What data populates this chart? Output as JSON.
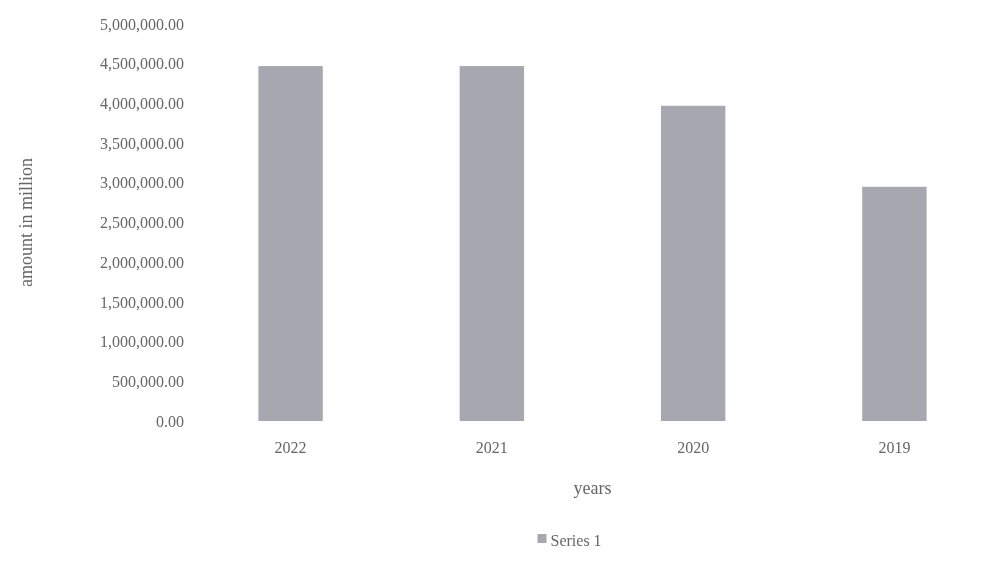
{
  "chart_data": {
    "type": "bar",
    "xlabel": "years",
    "ylabel": "amount in million",
    "categories": [
      "2022",
      "2021",
      "2020",
      "2019"
    ],
    "series": [
      {
        "name": "Series 1",
        "color": "#a7a7af",
        "values": [
          4470000,
          4470000,
          3970000,
          2950000
        ]
      }
    ],
    "ylim": [
      0,
      5000000
    ],
    "yticks": [
      {
        "value": 0,
        "label": "0.00"
      },
      {
        "value": 500000,
        "label": "500,000.00"
      },
      {
        "value": 1000000,
        "label": "1,000,000.00"
      },
      {
        "value": 1500000,
        "label": "1,500,000.00"
      },
      {
        "value": 2000000,
        "label": "2,000,000.00"
      },
      {
        "value": 2500000,
        "label": "2,500,000.00"
      },
      {
        "value": 3000000,
        "label": "3,000,000.00"
      },
      {
        "value": 3500000,
        "label": "3,500,000.00"
      },
      {
        "value": 4000000,
        "label": "4,000,000.00"
      },
      {
        "value": 4500000,
        "label": "4,500,000.00"
      },
      {
        "value": 5000000,
        "label": "5,000,000.00"
      }
    ],
    "legend": "bottom"
  }
}
